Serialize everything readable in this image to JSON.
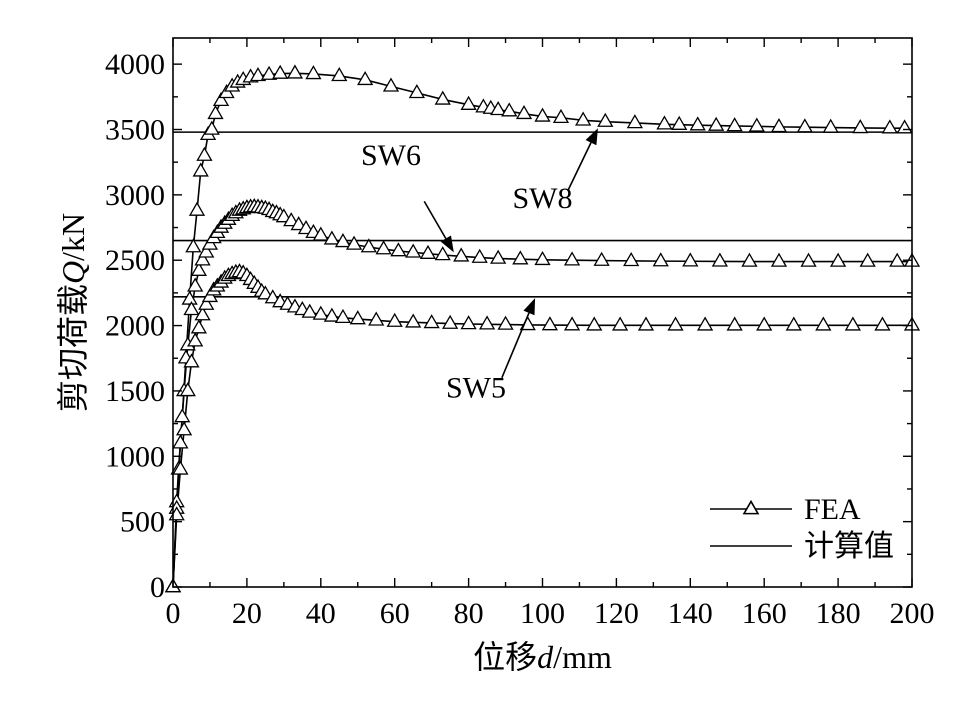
{
  "chart_data": {
    "type": "line",
    "title": "",
    "xlabel_prefix": "位移",
    "xlabel_var": "d",
    "xlabel_unit": "/mm",
    "ylabel_prefix": "剪切荷载",
    "ylabel_var": "Q",
    "ylabel_unit": "/kN",
    "xlim": [
      0,
      200
    ],
    "ylim": [
      0,
      4200
    ],
    "xticks": [
      0,
      20,
      40,
      60,
      80,
      100,
      120,
      140,
      160,
      180,
      200
    ],
    "yticks": [
      0,
      500,
      1000,
      1500,
      2000,
      2500,
      3000,
      3500,
      4000
    ],
    "grid": false,
    "legend_position": "bottom-right",
    "legend": [
      {
        "label": "FEA",
        "style": "line-triangle"
      },
      {
        "label": "计算值",
        "style": "line"
      }
    ],
    "series": [
      {
        "name": "SW8",
        "type": "fea",
        "x": [
          0,
          1,
          1.5,
          2.5,
          3.5,
          4.5,
          5.5,
          6.5,
          7.5,
          8.5,
          9.5,
          10.5,
          11.5,
          13,
          14.5,
          16,
          17.5,
          19,
          21,
          23,
          26,
          29,
          33,
          38,
          45,
          52,
          59,
          66,
          73,
          80,
          84,
          86,
          88,
          91,
          95,
          100,
          105,
          111,
          117,
          125,
          133,
          137,
          142,
          147,
          152,
          158,
          164,
          171,
          178,
          186,
          194,
          198
        ],
        "y": [
          0,
          650,
          900,
          1300,
          1750,
          2200,
          2600,
          2880,
          3180,
          3300,
          3460,
          3500,
          3620,
          3720,
          3780,
          3830,
          3860,
          3880,
          3900,
          3910,
          3920,
          3928,
          3930,
          3925,
          3910,
          3880,
          3830,
          3780,
          3730,
          3690,
          3670,
          3660,
          3650,
          3640,
          3620,
          3600,
          3590,
          3570,
          3560,
          3550,
          3540,
          3537,
          3533,
          3530,
          3527,
          3524,
          3520,
          3518,
          3515,
          3512,
          3510,
          3510
        ]
      },
      {
        "name": "SW6",
        "type": "fea",
        "x": [
          0,
          1,
          2,
          3,
          4,
          5,
          6,
          7,
          8,
          9,
          10,
          11,
          12,
          13,
          14,
          15,
          16,
          17,
          18,
          19,
          20,
          21,
          22,
          23,
          24,
          25,
          26,
          27,
          28,
          29,
          30,
          32,
          34,
          36,
          38,
          40,
          43,
          46,
          49,
          53,
          57,
          61,
          65,
          69,
          73,
          78,
          83,
          88,
          94,
          100,
          108,
          116,
          124,
          132,
          140,
          148,
          156,
          164,
          172,
          180,
          188,
          196,
          200
        ],
        "y": [
          0,
          600,
          1100,
          1500,
          1850,
          2120,
          2300,
          2420,
          2500,
          2560,
          2620,
          2670,
          2710,
          2750,
          2780,
          2810,
          2840,
          2860,
          2880,
          2890,
          2900,
          2905,
          2908,
          2905,
          2900,
          2895,
          2885,
          2870,
          2860,
          2845,
          2830,
          2800,
          2770,
          2740,
          2710,
          2690,
          2660,
          2640,
          2620,
          2600,
          2585,
          2570,
          2560,
          2550,
          2540,
          2530,
          2520,
          2513,
          2508,
          2503,
          2500,
          2497,
          2495,
          2493,
          2492,
          2491,
          2490,
          2490,
          2490,
          2490,
          2490,
          2490,
          2490
        ]
      },
      {
        "name": "SW5",
        "type": "fea",
        "x": [
          0,
          1,
          2,
          3,
          4,
          5,
          6,
          7,
          8,
          9,
          10,
          11,
          12,
          13,
          14,
          15,
          16,
          17,
          18,
          19,
          20,
          21,
          22,
          23,
          24,
          25,
          27,
          29,
          31,
          33,
          35,
          37,
          40,
          43,
          46,
          50,
          55,
          60,
          65,
          70,
          75,
          80,
          85,
          90,
          96,
          102,
          108,
          114,
          121,
          128,
          136,
          144,
          152,
          160,
          168,
          176,
          184,
          192,
          200
        ],
        "y": [
          0,
          550,
          900,
          1200,
          1500,
          1720,
          1880,
          1980,
          2080,
          2160,
          2220,
          2270,
          2300,
          2330,
          2360,
          2380,
          2395,
          2405,
          2410,
          2400,
          2380,
          2350,
          2320,
          2290,
          2260,
          2240,
          2210,
          2180,
          2160,
          2140,
          2120,
          2100,
          2085,
          2070,
          2060,
          2050,
          2040,
          2030,
          2025,
          2020,
          2015,
          2012,
          2010,
          2008,
          2005,
          2004,
          2003,
          2002,
          2002,
          2002,
          2002,
          2002,
          2002,
          2002,
          2002,
          2002,
          2002,
          2002,
          2002
        ]
      },
      {
        "name": "SW8 计算值",
        "type": "calc",
        "value": 3480
      },
      {
        "name": "SW6 计算值",
        "type": "calc",
        "value": 2650
      },
      {
        "name": "SW5 计算值",
        "type": "calc",
        "value": 2220
      }
    ],
    "annotations": [
      {
        "text": "SW8",
        "label_at": [
          100,
          2900
        ],
        "arrow_from": [
          107,
          3040
        ],
        "arrow_to": [
          115,
          3510
        ]
      },
      {
        "text": "SW6",
        "label_at": [
          59,
          3230
        ],
        "arrow_from": [
          68,
          2950
        ],
        "arrow_to": [
          76,
          2560
        ]
      },
      {
        "text": "SW5",
        "label_at": [
          82,
          1450
        ],
        "arrow_from": [
          89,
          1600
        ],
        "arrow_to": [
          98,
          2210
        ]
      }
    ]
  }
}
